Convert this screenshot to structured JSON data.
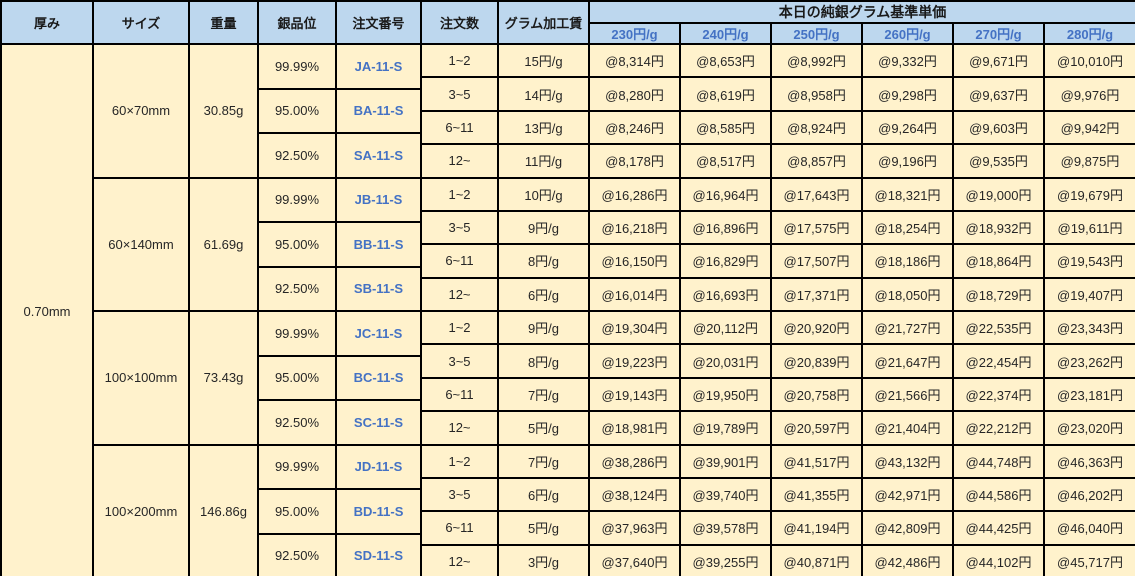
{
  "colors": {
    "header_bg": "#BDD7EE",
    "body_bg": "#FFF2CC",
    "accent_blue": "#4472C4",
    "border": "#000000"
  },
  "table": {
    "headers": {
      "thickness": "厚み",
      "size": "サイズ",
      "weight": "重量",
      "purity": "銀品位",
      "order_no": "注文番号",
      "order_qty": "注文数",
      "gram_fee": "グラム加工賃",
      "price_group": "本日の純銀グラム基準単価",
      "rates": [
        "230円/g",
        "240円/g",
        "250円/g",
        "260円/g",
        "270円/g",
        "280円/g"
      ]
    },
    "thickness_value": "0.70mm",
    "blocks": [
      {
        "size": "60×70mm",
        "weight": "30.85g",
        "purities": [
          {
            "purity": "99.99%",
            "order_no": "JA-11-S"
          },
          {
            "purity": "95.00%",
            "order_no": "BA-11-S"
          },
          {
            "purity": "92.50%",
            "order_no": "SA-11-S"
          }
        ],
        "rows": [
          {
            "qty": "1~2",
            "fee": "15円/g",
            "prices": [
              "@8,314円",
              "@8,653円",
              "@8,992円",
              "@9,332円",
              "@9,671円",
              "@10,010円"
            ]
          },
          {
            "qty": "3~5",
            "fee": "14円/g",
            "prices": [
              "@8,280円",
              "@8,619円",
              "@8,958円",
              "@9,298円",
              "@9,637円",
              "@9,976円"
            ]
          },
          {
            "qty": "6~11",
            "fee": "13円/g",
            "prices": [
              "@8,246円",
              "@8,585円",
              "@8,924円",
              "@9,264円",
              "@9,603円",
              "@9,942円"
            ]
          },
          {
            "qty": "12~",
            "fee": "11円/g",
            "prices": [
              "@8,178円",
              "@8,517円",
              "@8,857円",
              "@9,196円",
              "@9,535円",
              "@9,875円"
            ]
          }
        ]
      },
      {
        "size": "60×140mm",
        "weight": "61.69g",
        "purities": [
          {
            "purity": "99.99%",
            "order_no": "JB-11-S"
          },
          {
            "purity": "95.00%",
            "order_no": "BB-11-S"
          },
          {
            "purity": "92.50%",
            "order_no": "SB-11-S"
          }
        ],
        "rows": [
          {
            "qty": "1~2",
            "fee": "10円/g",
            "prices": [
              "@16,286円",
              "@16,964円",
              "@17,643円",
              "@18,321円",
              "@19,000円",
              "@19,679円"
            ]
          },
          {
            "qty": "3~5",
            "fee": "9円/g",
            "prices": [
              "@16,218円",
              "@16,896円",
              "@17,575円",
              "@18,254円",
              "@18,932円",
              "@19,611円"
            ]
          },
          {
            "qty": "6~11",
            "fee": "8円/g",
            "prices": [
              "@16,150円",
              "@16,829円",
              "@17,507円",
              "@18,186円",
              "@18,864円",
              "@19,543円"
            ]
          },
          {
            "qty": "12~",
            "fee": "6円/g",
            "prices": [
              "@16,014円",
              "@16,693円",
              "@17,371円",
              "@18,050円",
              "@18,729円",
              "@19,407円"
            ]
          }
        ]
      },
      {
        "size": "100×100mm",
        "weight": "73.43g",
        "purities": [
          {
            "purity": "99.99%",
            "order_no": "JC-11-S"
          },
          {
            "purity": "95.00%",
            "order_no": "BC-11-S"
          },
          {
            "purity": "92.50%",
            "order_no": "SC-11-S"
          }
        ],
        "rows": [
          {
            "qty": "1~2",
            "fee": "9円/g",
            "prices": [
              "@19,304円",
              "@20,112円",
              "@20,920円",
              "@21,727円",
              "@22,535円",
              "@23,343円"
            ]
          },
          {
            "qty": "3~5",
            "fee": "8円/g",
            "prices": [
              "@19,223円",
              "@20,031円",
              "@20,839円",
              "@21,647円",
              "@22,454円",
              "@23,262円"
            ]
          },
          {
            "qty": "6~11",
            "fee": "7円/g",
            "prices": [
              "@19,143円",
              "@19,950円",
              "@20,758円",
              "@21,566円",
              "@22,374円",
              "@23,181円"
            ]
          },
          {
            "qty": "12~",
            "fee": "5円/g",
            "prices": [
              "@18,981円",
              "@19,789円",
              "@20,597円",
              "@21,404円",
              "@22,212円",
              "@23,020円"
            ]
          }
        ]
      },
      {
        "size": "100×200mm",
        "weight": "146.86g",
        "purities": [
          {
            "purity": "99.99%",
            "order_no": "JD-11-S"
          },
          {
            "purity": "95.00%",
            "order_no": "BD-11-S"
          },
          {
            "purity": "92.50%",
            "order_no": "SD-11-S"
          }
        ],
        "rows": [
          {
            "qty": "1~2",
            "fee": "7円/g",
            "prices": [
              "@38,286円",
              "@39,901円",
              "@41,517円",
              "@43,132円",
              "@44,748円",
              "@46,363円"
            ]
          },
          {
            "qty": "3~5",
            "fee": "6円/g",
            "prices": [
              "@38,124円",
              "@39,740円",
              "@41,355円",
              "@42,971円",
              "@44,586円",
              "@46,202円"
            ]
          },
          {
            "qty": "6~11",
            "fee": "5円/g",
            "prices": [
              "@37,963円",
              "@39,578円",
              "@41,194円",
              "@42,809円",
              "@44,425円",
              "@46,040円"
            ]
          },
          {
            "qty": "12~",
            "fee": "3円/g",
            "prices": [
              "@37,640円",
              "@39,255円",
              "@40,871円",
              "@42,486円",
              "@44,102円",
              "@45,717円"
            ]
          }
        ]
      }
    ]
  }
}
